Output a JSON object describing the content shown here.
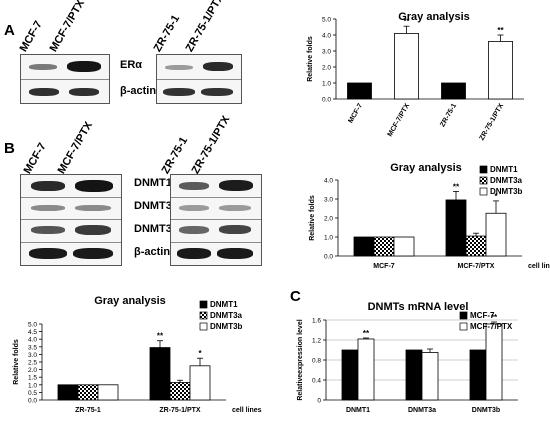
{
  "panels": {
    "a": "A",
    "b": "B",
    "c": "C"
  },
  "blot_a": {
    "lanes_left": [
      "MCF-7",
      "MCF-7/PTX"
    ],
    "lanes_right": [
      "ZR-75-1",
      "ZR-75-1/PTX"
    ],
    "rows": [
      "ERα",
      "β-actin"
    ]
  },
  "blot_b": {
    "lanes_left": [
      "MCF-7",
      "MCF-7/PTX"
    ],
    "lanes_right": [
      "ZR-75-1",
      "ZR-75-1/PTX"
    ],
    "rows": [
      "DNMT1",
      "DNMT3a",
      "DNMT3b",
      "β-actin"
    ]
  },
  "chart_data": [
    {
      "id": "chart-a",
      "type": "bar",
      "title": "Gray analysis",
      "ylabel": "Relative folds",
      "xlabel": "",
      "categories": [
        "MCF-7",
        "MCF-7/PTX",
        "ZR-75-1",
        "ZR-75-1/PTX"
      ],
      "values": [
        1.0,
        4.1,
        1.0,
        3.6
      ],
      "errors": [
        0,
        0.45,
        0,
        0.4
      ],
      "bar_colors": [
        "#000000",
        "#ffffff",
        "#000000",
        "#ffffff"
      ],
      "significance": [
        "",
        "**",
        "",
        "**"
      ],
      "ylim": [
        0,
        5
      ],
      "yticks": [
        "0.0",
        "1.0",
        "2.0",
        "3.0",
        "4.0",
        "5.0"
      ],
      "legend": "none"
    },
    {
      "id": "chart-b",
      "type": "bar",
      "title": "Gray analysis",
      "ylabel": "Relative folds",
      "xlabel": "cell lines",
      "categories": [
        "MCF-7",
        "MCF-7/PTX"
      ],
      "series": [
        {
          "name": "DNMT1",
          "values": [
            1.0,
            2.95
          ],
          "errors": [
            0,
            0.45
          ],
          "significance": [
            "",
            "**"
          ],
          "fill": "black"
        },
        {
          "name": "DNMT3a",
          "values": [
            1.0,
            1.05
          ],
          "errors": [
            0,
            0.15
          ],
          "significance": [
            "",
            ""
          ],
          "fill": "checker"
        },
        {
          "name": "DNMT3b",
          "values": [
            1.0,
            2.25
          ],
          "errors": [
            0,
            0.65
          ],
          "significance": [
            "",
            "*"
          ],
          "fill": "white"
        }
      ],
      "ylim": [
        0,
        4
      ],
      "yticks": [
        "0.0",
        "1.0",
        "2.0",
        "3.0",
        "4.0"
      ],
      "legend": "top-right"
    },
    {
      "id": "chart-b2",
      "type": "bar",
      "title": "Gray analysis",
      "ylabel": "Relative folds",
      "xlabel": "cell lines",
      "categories": [
        "ZR-75-1",
        "ZR-75-1/PTX"
      ],
      "series": [
        {
          "name": "DNMT1",
          "values": [
            1.0,
            3.45
          ],
          "errors": [
            0,
            0.45
          ],
          "significance": [
            "",
            "**"
          ],
          "fill": "black"
        },
        {
          "name": "DNMT3a",
          "values": [
            1.0,
            1.15
          ],
          "errors": [
            0,
            0.15
          ],
          "significance": [
            "",
            ""
          ],
          "fill": "checker"
        },
        {
          "name": "DNMT3b",
          "values": [
            1.0,
            2.25
          ],
          "errors": [
            0,
            0.5
          ],
          "significance": [
            "",
            "*"
          ],
          "fill": "white"
        }
      ],
      "ylim": [
        0,
        5
      ],
      "yticks": [
        "0.0",
        "0.5",
        "1.0",
        "1.5",
        "2.0",
        "2.5",
        "3.0",
        "3.5",
        "4.0",
        "4.5",
        "5.0"
      ],
      "legend": "top-right"
    },
    {
      "id": "chart-c",
      "type": "bar",
      "title": "DNMTs mRNA level",
      "ylabel": "Relativeexpression level",
      "xlabel": "",
      "categories": [
        "DNMT1",
        "DNMT3a",
        "DNMT3b"
      ],
      "series": [
        {
          "name": "MCF-7",
          "values": [
            1.0,
            1.0,
            1.0
          ],
          "errors": [
            0,
            0,
            0
          ],
          "significance": [
            "",
            "",
            ""
          ],
          "fill": "black"
        },
        {
          "name": "MCF-7/PTX",
          "values": [
            1.22,
            0.95,
            1.52
          ],
          "errors": [
            0.02,
            0.07,
            0.04
          ],
          "significance": [
            "**",
            "",
            "**"
          ],
          "fill": "white"
        }
      ],
      "ylim": [
        0,
        1.6
      ],
      "yticks": [
        "0",
        "0.4",
        "0.8",
        "1.2",
        "1.6"
      ],
      "legend": "top-right"
    }
  ]
}
